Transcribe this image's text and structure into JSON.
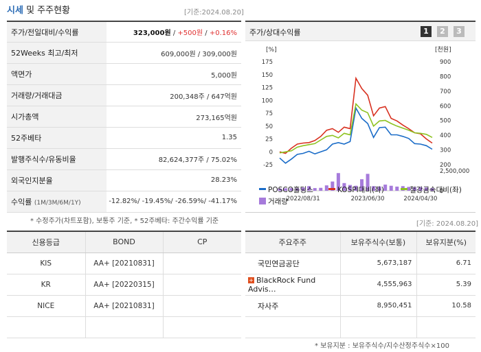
{
  "header": {
    "title_main": "시세",
    "title_rest": "및 주주현황",
    "base_date": "[기준:2024.08.20]"
  },
  "quote": {
    "price_label": "주가/전일대비/수익률",
    "price": "323,000원",
    "change": "+500원",
    "change_pct": "+0.16%",
    "hl_label": "52Weeks 최고/최저",
    "hl_value": "609,000원 / 309,000원",
    "face_label": "액면가",
    "face_value": "5,000원",
    "vol_label": "거래량/거래대금",
    "vol_value": "200,348주 / 647억원",
    "cap_label": "시가총액",
    "cap_value": "273,165억원",
    "beta_label": "52주베타",
    "beta_value": "1.35",
    "shares_label": "발행주식수/유동비율",
    "shares_value": "82,624,377주 / 75.02%",
    "foreign_label": "외국인지분율",
    "foreign_value": "28.23%",
    "ret_label": "수익률",
    "ret_periods": "(1M/3M/6M/1Y)",
    "ret_1m": "-12.82%",
    "ret_3m": "-19.45%",
    "ret_6m": "-26.59%",
    "ret_1y": "-41.17%",
    "note": "* 수정주가(차트포함), 보통주 기준, * 52주베타: 주간수익률 기준"
  },
  "chart_panel": {
    "title": "주가/상대수익률",
    "buttons": [
      "1",
      "2",
      "3"
    ]
  },
  "chart_data": {
    "type": "line",
    "left_unit": "[%]",
    "right_unit": "[천원]",
    "left_ticks": [
      175,
      150,
      125,
      100,
      75,
      50,
      25,
      0,
      -25
    ],
    "right_ticks": [
      900,
      800,
      700,
      600,
      500,
      400,
      300,
      200
    ],
    "vol_ticks": [
      "2,500,000",
      "0"
    ],
    "x_labels": [
      "2022/08/31",
      "2023/06/30",
      "2024/04/30"
    ],
    "ylim": [
      -25,
      175
    ],
    "vol_max": 2500000,
    "series": [
      {
        "name": "POSCO홀딩스",
        "color": "#1a6cc8",
        "values": [
          -12,
          -22,
          -14,
          -5,
          -3,
          1,
          -4,
          0,
          4,
          15,
          18,
          15,
          20,
          85,
          65,
          55,
          28,
          47,
          48,
          33,
          33,
          30,
          26,
          16,
          15,
          12,
          5
        ]
      },
      {
        "name": "KOSPI대비(좌)",
        "color": "#d8301f",
        "values": [
          0,
          -3,
          7,
          15,
          17,
          18,
          22,
          30,
          42,
          45,
          38,
          48,
          45,
          143,
          123,
          110,
          70,
          85,
          88,
          65,
          60,
          52,
          45,
          37,
          35,
          25,
          17
        ]
      },
      {
        "name": "철강금속대비(좌)",
        "color": "#8dc21f",
        "values": [
          -2,
          0,
          2,
          9,
          12,
          14,
          16,
          23,
          30,
          32,
          27,
          36,
          33,
          93,
          81,
          76,
          50,
          60,
          61,
          55,
          50,
          46,
          42,
          37,
          36,
          34,
          28
        ]
      }
    ],
    "volume": {
      "name": "거래량",
      "color": "#a67bdb",
      "values": [
        300000,
        320000,
        340000,
        330000,
        420000,
        600000,
        350000,
        380000,
        700000,
        1200000,
        2300000,
        1000000,
        750000,
        650000,
        1500000,
        2200000,
        600000,
        550000,
        800000,
        650000,
        540000,
        600000,
        500000,
        460000,
        480000,
        420000,
        330000
      ]
    }
  },
  "shareholder_base_date": "[기준: 2024.08.20]",
  "credit": {
    "headers": [
      "신용등급",
      "BOND",
      "CP"
    ],
    "rows": [
      {
        "agency": "KIS",
        "bond": "AA+ [20210831]",
        "cp": ""
      },
      {
        "agency": "KR",
        "bond": "AA+ [20220315]",
        "cp": ""
      },
      {
        "agency": "NICE",
        "bond": "AA+ [20210831]",
        "cp": ""
      }
    ]
  },
  "shareholders": {
    "headers": [
      "주요주주",
      "보유주식수(보통)",
      "보유지분(%)"
    ],
    "rows": [
      {
        "name": "국민연금공단",
        "shares": "5,673,187",
        "pct": "6.71",
        "expand": false
      },
      {
        "name": "BlackRock Fund Advis…",
        "shares": "4,555,963",
        "pct": "5.39",
        "expand": true
      },
      {
        "name": "자사주",
        "shares": "8,950,451",
        "pct": "10.58",
        "expand": false
      }
    ],
    "note": "* 보유지분 : 보유주식수/지수산정주식수×100"
  }
}
